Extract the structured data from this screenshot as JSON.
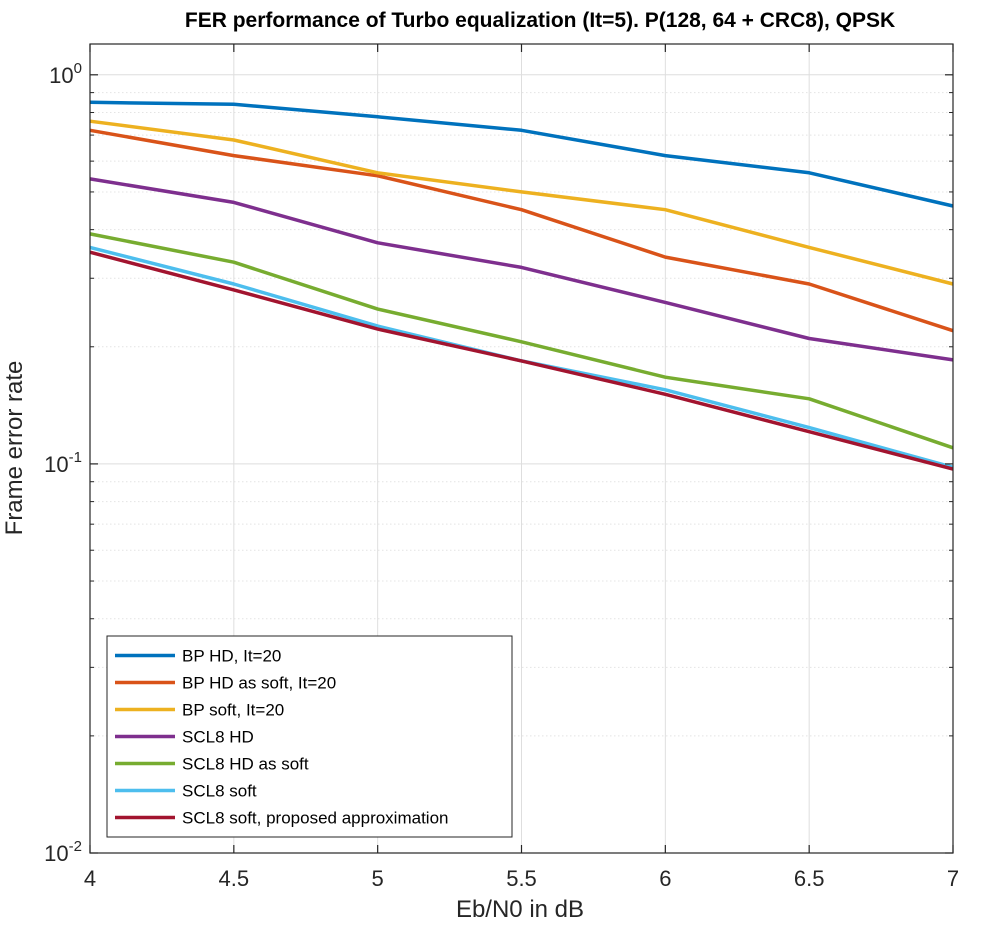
{
  "chart_data": {
    "type": "line",
    "title": "FER performance of Turbo equalization (It=5). P(128, 64 + CRC8), QPSK",
    "xlabel": "Eb/N0 in dB",
    "ylabel": "Frame error rate",
    "xlim": [
      4,
      7
    ],
    "ylim": [
      0.01,
      1.2
    ],
    "yscale": "log",
    "grid": true,
    "minor_grid": true,
    "legend_location": "bottom-left",
    "x": [
      4,
      4.5,
      5,
      5.5,
      6,
      6.5,
      7
    ],
    "x_ticks": [
      4,
      4.5,
      5,
      5.5,
      6,
      6.5,
      7
    ],
    "x_tick_labels": [
      "4",
      "4.5",
      "5",
      "5.5",
      "6",
      "6.5",
      "7"
    ],
    "y_ticks": [
      {
        "value": 1,
        "base": "10",
        "exp": "0"
      },
      {
        "value": 0.1,
        "base": "10",
        "exp": "-1"
      },
      {
        "value": 0.01,
        "base": "10",
        "exp": "-2"
      }
    ],
    "series": [
      {
        "name": "BP HD, It=20",
        "color": "#0072BD",
        "values": [
          0.85,
          0.84,
          0.78,
          0.72,
          0.62,
          0.56,
          0.46
        ]
      },
      {
        "name": "BP HD as soft, It=20",
        "color": "#D95319",
        "values": [
          0.72,
          0.62,
          0.55,
          0.45,
          0.34,
          0.29,
          0.22
        ]
      },
      {
        "name": "BP soft, It=20",
        "color": "#EDB120",
        "values": [
          0.76,
          0.68,
          0.56,
          0.5,
          0.45,
          0.36,
          0.29
        ]
      },
      {
        "name": "SCL8 HD",
        "color": "#7E2F8E",
        "values": [
          0.54,
          0.47,
          0.37,
          0.32,
          0.26,
          0.21,
          0.185
        ]
      },
      {
        "name": "SCL8 HD as soft",
        "color": "#77AC30",
        "values": [
          0.39,
          0.33,
          0.25,
          0.206,
          0.167,
          0.147,
          0.11
        ]
      },
      {
        "name": "SCL8 soft",
        "color": "#4DBEEE",
        "values": [
          0.36,
          0.29,
          0.226,
          0.184,
          0.155,
          0.124,
          0.098
        ]
      },
      {
        "name": "SCL8 soft, proposed approximation",
        "color": "#A2142F",
        "values": [
          0.35,
          0.28,
          0.222,
          0.184,
          0.151,
          0.121,
          0.097
        ]
      }
    ]
  }
}
